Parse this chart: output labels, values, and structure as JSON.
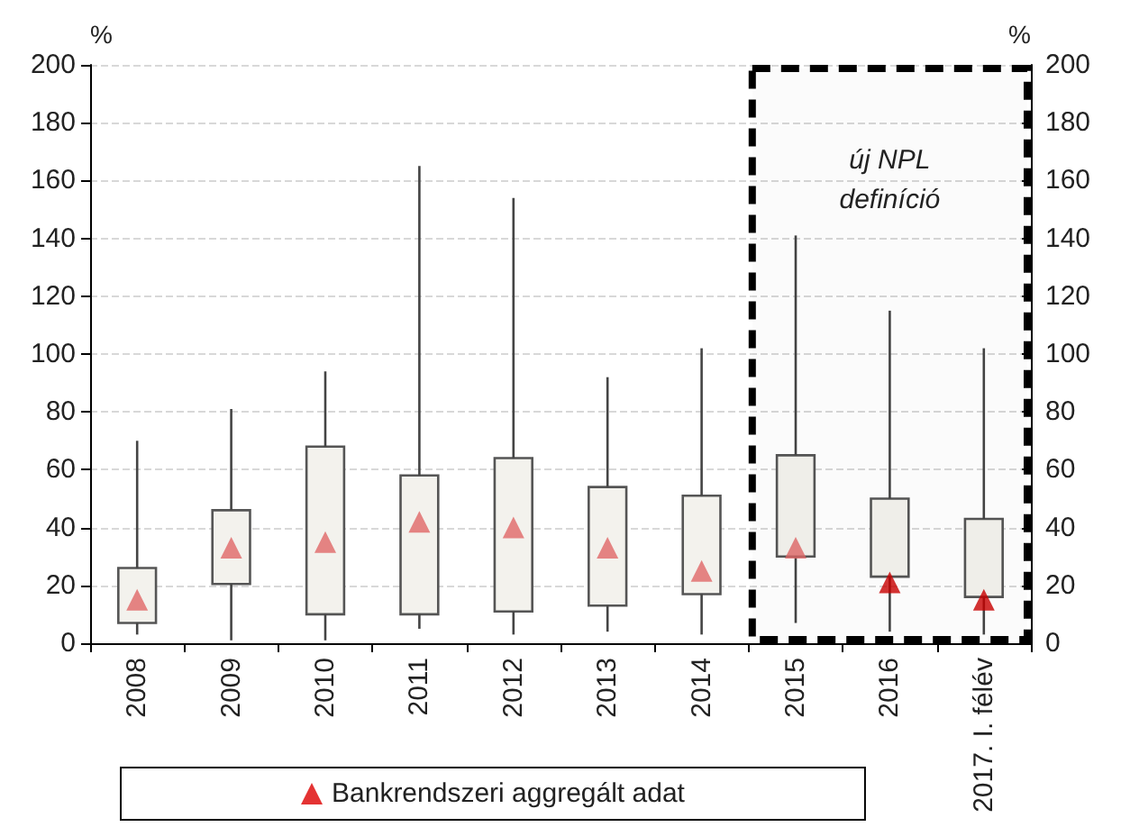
{
  "chart_data": {
    "type": "box",
    "categories": [
      "2008",
      "2009",
      "2010",
      "2011",
      "2012",
      "2013",
      "2014",
      "2015",
      "2016",
      "2017. I. félév"
    ],
    "ylabel": "%",
    "y2label": "%",
    "ylim": [
      0,
      200
    ],
    "yticks": [
      0,
      20,
      40,
      60,
      80,
      100,
      120,
      140,
      160,
      180,
      200
    ],
    "y2lim": [
      0,
      200
    ],
    "y2ticks": [
      0,
      20,
      40,
      60,
      80,
      100,
      120,
      140,
      160,
      180,
      200
    ],
    "grid": "y",
    "legend": "bottom",
    "series": [
      {
        "color": "#f3f2ed",
        "boxes": [
          {
            "low": 3,
            "q1": 7,
            "q3": 26,
            "high": 70
          },
          {
            "low": 1,
            "q1": 20.5,
            "q3": 46,
            "high": 81
          },
          {
            "low": 1,
            "q1": 10,
            "q3": 68,
            "high": 94
          },
          {
            "low": 5,
            "q1": 10,
            "q3": 58,
            "high": 165
          },
          {
            "low": 3,
            "q1": 11,
            "q3": 64,
            "high": 154
          },
          {
            "low": 4,
            "q1": 13,
            "q3": 54,
            "high": 92
          },
          {
            "low": 3,
            "q1": 17,
            "q3": 51,
            "high": 102
          },
          {
            "low": 7,
            "q1": 30,
            "q3": 65,
            "high": 141
          },
          {
            "low": 4,
            "q1": 23,
            "q3": 50,
            "high": 115
          },
          {
            "low": 3,
            "q1": 16,
            "q3": 43,
            "high": 102
          }
        ]
      },
      {
        "type": "scatter",
        "name": "Bankrendszeri aggregált adat",
        "color": "#dd0000",
        "marker": "triangle",
        "values": [
          15,
          33,
          35,
          42,
          40,
          33,
          25,
          33,
          21,
          15
        ],
        "colors": [
          "#e06666",
          "#e06666",
          "#e06666",
          "#e06666",
          "#e06666",
          "#e06666",
          "#e06666",
          "#e06666",
          "#cc0000",
          "#cc0000"
        ]
      }
    ],
    "bands": [
      {
        "axis": "x",
        "from": "2015",
        "to": "2017. I. félév",
        "label": "új NPL\ndefiníció",
        "color": "#000000"
      }
    ]
  }
}
